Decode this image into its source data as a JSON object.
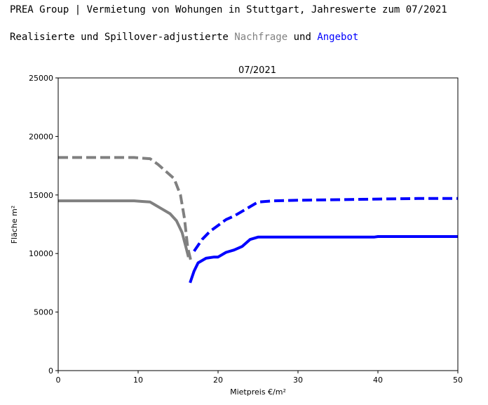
{
  "header": {
    "title": "PREA Group | Vermietung von Wohungen in Stuttgart, Jahreswerte zum 07/2021",
    "subtitle_prefix": "Realisierte und Spillover-adjustierte ",
    "subtitle_demand": "Nachfrage",
    "subtitle_mid": " und ",
    "subtitle_supply": "Angebot"
  },
  "chart_data": {
    "type": "line",
    "title": "07/2021",
    "xlabel": "Mietpreis €/m²",
    "ylabel": "Fläche m²",
    "xlim": [
      0,
      50
    ],
    "ylim": [
      0,
      25000
    ],
    "xticks": [
      0,
      10,
      20,
      30,
      40,
      50
    ],
    "yticks": [
      0,
      5000,
      10000,
      15000,
      20000,
      25000
    ],
    "grid": false,
    "series": [
      {
        "role": "demand-realized",
        "color": "#808080",
        "style": "solid",
        "x": [
          0,
          5,
          9.5,
          10.5,
          11.5,
          12,
          13,
          14,
          14.8,
          15.5,
          16,
          16.3
        ],
        "y": [
          14500,
          14500,
          14500,
          14450,
          14400,
          14200,
          13800,
          13400,
          12800,
          11800,
          10500,
          9700
        ]
      },
      {
        "role": "demand-spillover-adjusted",
        "color": "#808080",
        "style": "dashed",
        "x": [
          0,
          5,
          9.5,
          10.5,
          11.5,
          12.5,
          13.5,
          14.5,
          15.3,
          15.8,
          16.2,
          16.6
        ],
        "y": [
          18200,
          18200,
          18200,
          18150,
          18100,
          17600,
          17000,
          16400,
          15000,
          13000,
          10500,
          9400
        ]
      },
      {
        "role": "supply-realized",
        "color": "#0000ff",
        "style": "solid",
        "x": [
          16.5,
          17,
          17.5,
          18.5,
          19.5,
          20,
          21,
          22,
          23,
          24,
          25,
          30,
          39.5,
          40,
          50
        ],
        "y": [
          7500,
          8500,
          9200,
          9600,
          9700,
          9700,
          10100,
          10300,
          10600,
          11200,
          11400,
          11400,
          11400,
          11450,
          11450
        ]
      },
      {
        "role": "supply-spillover-adjusted",
        "color": "#0000ff",
        "style": "dashed",
        "x": [
          17,
          18,
          19,
          20,
          21,
          22,
          23,
          24,
          25,
          27,
          30,
          35,
          40,
          45,
          50
        ],
        "y": [
          10200,
          11200,
          11900,
          12400,
          12900,
          13200,
          13600,
          14000,
          14400,
          14500,
          14550,
          14600,
          14650,
          14700,
          14700
        ]
      }
    ]
  }
}
